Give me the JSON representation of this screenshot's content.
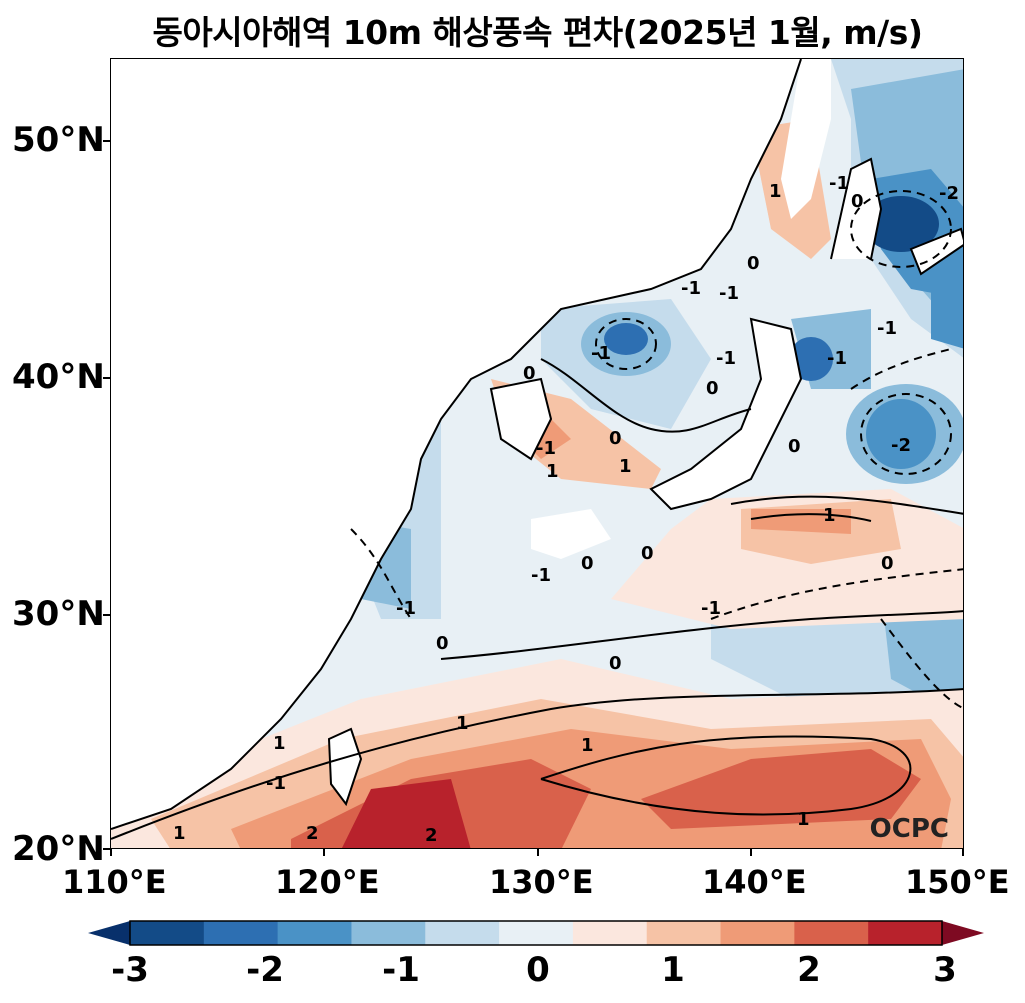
{
  "title": "동아시아해역 10m 해상풍속 편차(2025년 1월, m/s)",
  "map": {
    "lon_range": [
      110,
      150
    ],
    "lat_range": [
      20,
      53.5
    ],
    "lat_ticks": [
      "50°N",
      "40°N",
      "30°N",
      "20°N"
    ],
    "lon_ticks": [
      "110°E",
      "120°E",
      "130°E",
      "140°E",
      "150°E"
    ],
    "credit": "OCPC",
    "contour_labels": [
      "-2",
      "-1",
      "0",
      "1",
      "-1",
      "0",
      "-1",
      "-1",
      "-1",
      "0",
      "1",
      "-1",
      "-1",
      "0",
      "1",
      "-2",
      "0",
      "0",
      "0",
      "-1",
      "1",
      "0",
      "0",
      "-1",
      "0",
      "1",
      "1",
      "-1",
      "2",
      "1",
      "2",
      "1",
      "1",
      "-1",
      "0",
      "-1"
    ]
  },
  "colorbar": {
    "ticks": [
      "-3",
      "-2",
      "-1",
      "0",
      "1",
      "2",
      "3"
    ],
    "colors": [
      "#08306b",
      "#134b87",
      "#2d6fb2",
      "#4a92c6",
      "#8bbcdb",
      "#c5dcec",
      "#e8f0f5",
      "#fbe7de",
      "#f6c3a6",
      "#ef9b77",
      "#d9614b",
      "#b8222c",
      "#7e0a22"
    ]
  }
}
